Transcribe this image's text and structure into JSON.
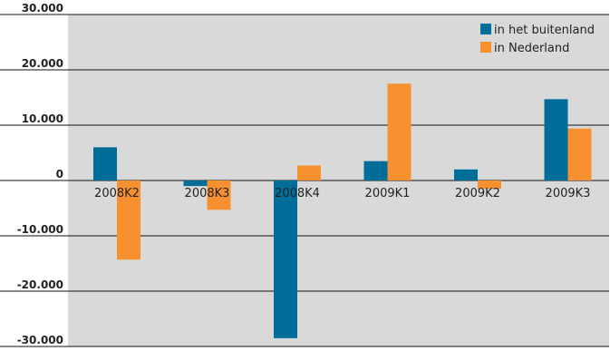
{
  "chart_data": {
    "type": "bar",
    "categories": [
      "2008K2",
      "2008K3",
      "2008K4",
      "2009K1",
      "2009K2",
      "2009K3"
    ],
    "series": [
      {
        "name": "in het buitenland",
        "color": "#006e99",
        "values": [
          6000,
          -1000,
          -28500,
          3500,
          2000,
          14700
        ]
      },
      {
        "name": "in Nederland",
        "color": "#f7902f",
        "values": [
          -14300,
          -5300,
          2700,
          17500,
          -1500,
          9400
        ]
      }
    ],
    "y_ticks": [
      "30.000",
      "20.000",
      "10.000",
      "0",
      "-10.000",
      "-20.000",
      "-30.000"
    ],
    "ylim": [
      -30000,
      30000
    ],
    "grid": true,
    "legend_position": "top-right",
    "plot_background": "#d9d9d9"
  }
}
